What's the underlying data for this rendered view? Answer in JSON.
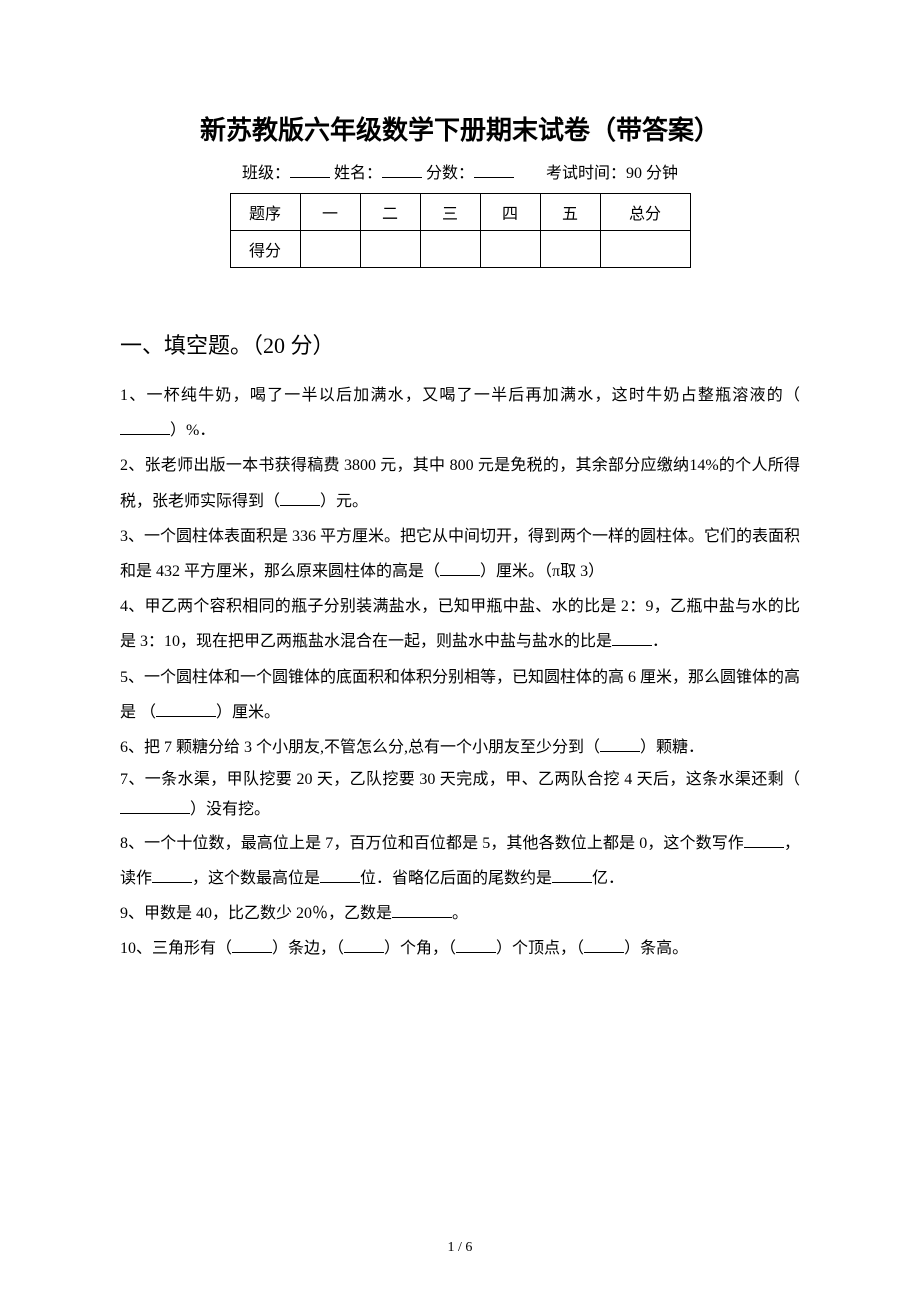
{
  "doc": {
    "title": "新苏教版六年级数学下册期末试卷（带答案）",
    "meta": {
      "class_label": "班级：",
      "name_label": "姓名：",
      "score_label": "分数：",
      "time_label": "考试时间：90 分钟"
    },
    "score_table": {
      "headers": [
        "题序",
        "一",
        "二",
        "三",
        "四",
        "五",
        "总分"
      ],
      "row_label": "得分"
    },
    "section1": {
      "heading": "一、填空题。（20 分）",
      "q1": {
        "a": "1、一杯纯牛奶，喝了一半以后加满水，又喝了一半后再加满水，这时牛奶占整瓶溶液的（",
        "b": "）%．"
      },
      "q2": {
        "a": "2、张老师出版一本书获得稿费 3800 元，其中 800 元是免税的，其余部分应缴纳14%的个人所得税，张老师实际得到（",
        "b": "）元。"
      },
      "q3": {
        "a": "3、一个圆柱体表面积是 336 平方厘米。把它从中间切开，得到两个一样的圆柱体。它们的表面积和是 432 平方厘米，那么原来圆柱体的高是（",
        "b": "）厘米。（π取 3）"
      },
      "q4": {
        "a": "4、甲乙两个容积相同的瓶子分别装满盐水，已知甲瓶中盐、水的比是 2：9，乙瓶中盐与水的比是 3：10，现在把甲乙两瓶盐水混合在一起，则盐水中盐与盐水的比是",
        "b": "．"
      },
      "q5": {
        "a": "5、一个圆柱体和一个圆锥体的底面积和体积分别相等，已知圆柱体的高 6 厘米，那么圆锥体的高是 （",
        "b": "）厘米。"
      },
      "q6": {
        "a": "6、把 7 颗糖分给 3 个小朋友,不管怎么分,总有一个小朋友至少分到（",
        "b": "）颗糖．"
      },
      "q7": {
        "a": "7、一条水渠，甲队挖要 20 天，乙队挖要 30 天完成，甲、乙两队合挖 4 天后，这条水渠还剩（",
        "b": "）没有挖。"
      },
      "q8": {
        "a": "8、一个十位数，最高位上是 7，百万位和百位都是 5，其他各数位上都是 0，这个数写作",
        "b": "，读作",
        "c": "，这个数最高位是",
        "d": "位．省略亿后面的尾数约是",
        "e": "亿．"
      },
      "q9": {
        "a": "9、甲数是 40，比乙数少 20％，乙数是",
        "b": "。"
      },
      "q10": {
        "a": "10、三角形有（",
        "b": "）条边，（",
        "c": "）个角，（",
        "d": "）个顶点，（",
        "e": "）条高。"
      }
    },
    "page_num": "1 / 6"
  }
}
